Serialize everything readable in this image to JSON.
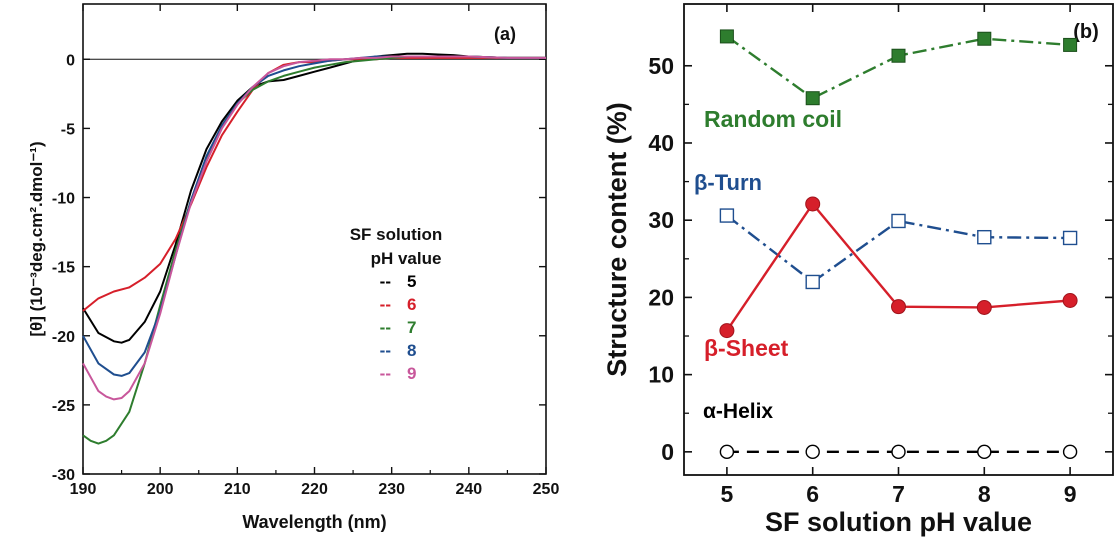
{
  "chart_data": [
    {
      "type": "line",
      "panel_label": "(a)",
      "xlabel": "Wavelength (nm)",
      "ylabel": "[θ] (10⁻³deg.cm².dmol⁻¹)",
      "xlim": [
        190,
        250
      ],
      "ylim": [
        -30,
        4
      ],
      "x_ticks": [
        190,
        200,
        210,
        220,
        230,
        240,
        250
      ],
      "y_ticks": [
        0,
        -5,
        -10,
        -15,
        -20,
        -25,
        -30
      ],
      "grid": false,
      "reference_line_y": 0,
      "legend": {
        "title_line1": "SF solution",
        "title_line2": "pH value",
        "placement": "center-right",
        "entries": [
          {
            "dash": "--",
            "label": "5",
            "color": "#000000"
          },
          {
            "dash": "--",
            "label": "6",
            "color": "#d61f2a"
          },
          {
            "dash": "--",
            "label": "7",
            "color": "#2e7d2e"
          },
          {
            "dash": "--",
            "label": "8",
            "color": "#1f4e8f"
          },
          {
            "dash": "--",
            "label": "9",
            "color": "#c8579b"
          }
        ]
      },
      "series": [
        {
          "name": "5",
          "color": "#000000",
          "x": [
            190,
            192,
            194,
            195,
            196,
            198,
            200,
            202,
            204,
            206,
            208,
            210,
            212,
            214,
            216,
            218,
            220,
            222,
            224,
            226,
            228,
            230,
            232,
            234,
            236,
            238,
            240,
            245,
            250
          ],
          "y": [
            -18.0,
            -19.8,
            -20.4,
            -20.5,
            -20.3,
            -19.0,
            -16.8,
            -13.4,
            -9.5,
            -6.5,
            -4.5,
            -3.0,
            -2.0,
            -1.6,
            -1.5,
            -1.2,
            -0.9,
            -0.6,
            -0.3,
            0.0,
            0.2,
            0.3,
            0.4,
            0.4,
            0.35,
            0.3,
            0.2,
            0.1,
            0.1
          ]
        },
        {
          "name": "6",
          "color": "#d61f2a",
          "x": [
            190,
            192,
            194,
            196,
            198,
            200,
            202,
            204,
            206,
            208,
            210,
            212,
            214,
            216,
            218,
            220,
            222,
            224,
            226,
            228,
            230,
            232,
            234,
            236,
            238,
            240,
            245,
            250
          ],
          "y": [
            -18.2,
            -17.3,
            -16.8,
            -16.5,
            -15.8,
            -14.8,
            -13.0,
            -10.5,
            -7.8,
            -5.5,
            -3.8,
            -2.2,
            -1.0,
            -0.4,
            -0.2,
            -0.2,
            -0.1,
            0.0,
            0.0,
            0.0,
            0.1,
            0.1,
            0.1,
            0.1,
            0.1,
            0.1,
            0.1,
            0.1
          ]
        },
        {
          "name": "7",
          "color": "#2e7d2e",
          "x": [
            190,
            191,
            192,
            193,
            194,
            196,
            198,
            200,
            202,
            204,
            206,
            208,
            210,
            212,
            214,
            216,
            218,
            220,
            222,
            224,
            226,
            228,
            230,
            232,
            234,
            236,
            238,
            240,
            245,
            250
          ],
          "y": [
            -27.2,
            -27.6,
            -27.8,
            -27.6,
            -27.2,
            -25.5,
            -22.0,
            -17.8,
            -13.8,
            -10.2,
            -7.2,
            -4.8,
            -3.2,
            -2.2,
            -1.6,
            -1.2,
            -0.9,
            -0.6,
            -0.4,
            -0.2,
            -0.1,
            0.0,
            0.1,
            0.2,
            0.2,
            0.2,
            0.2,
            0.2,
            0.1,
            0.1
          ]
        },
        {
          "name": "8",
          "color": "#1f4e8f",
          "x": [
            190,
            192,
            194,
            195,
            196,
            198,
            200,
            202,
            204,
            206,
            208,
            210,
            212,
            214,
            216,
            218,
            220,
            222,
            224,
            226,
            228,
            230,
            232,
            234,
            236,
            238,
            240,
            245,
            250
          ],
          "y": [
            -20.0,
            -22.0,
            -22.8,
            -22.9,
            -22.7,
            -21.2,
            -18.2,
            -14.2,
            -10.2,
            -7.0,
            -4.8,
            -3.2,
            -2.0,
            -1.2,
            -0.8,
            -0.5,
            -0.3,
            -0.1,
            0.0,
            0.1,
            0.2,
            0.2,
            0.2,
            0.2,
            0.2,
            0.2,
            0.2,
            0.1,
            0.1
          ]
        },
        {
          "name": "9",
          "color": "#c8579b",
          "x": [
            190,
            192,
            193,
            194,
            195,
            196,
            198,
            200,
            202,
            204,
            206,
            208,
            210,
            212,
            214,
            216,
            218,
            220,
            222,
            224,
            226,
            228,
            230,
            232,
            234,
            236,
            238,
            240,
            245,
            250
          ],
          "y": [
            -22.0,
            -24.0,
            -24.4,
            -24.6,
            -24.5,
            -24.0,
            -22.0,
            -18.4,
            -14.2,
            -10.4,
            -7.4,
            -5.0,
            -3.3,
            -2.0,
            -1.0,
            -0.5,
            -0.2,
            -0.1,
            0.0,
            0.0,
            0.1,
            0.1,
            0.2,
            0.2,
            0.2,
            0.2,
            0.2,
            0.2,
            0.1,
            0.1
          ]
        }
      ]
    },
    {
      "type": "line",
      "panel_label": "(b)",
      "xlabel": "SF solution pH value",
      "ylabel": "Structure content (%)",
      "xlim": [
        4.5,
        9.5
      ],
      "ylim": [
        -3,
        58
      ],
      "x_ticks": [
        5,
        6,
        7,
        8,
        9
      ],
      "y_ticks": [
        0,
        10,
        20,
        30,
        40,
        50
      ],
      "grid": false,
      "categories": [
        5,
        6,
        7,
        8,
        9
      ],
      "series": [
        {
          "name": "Random coil",
          "color": "#2e7d2e",
          "marker": "square-filled",
          "line": "dash-dot",
          "values": [
            53.8,
            45.8,
            51.3,
            53.5,
            52.7
          ]
        },
        {
          "name": "β-Turn",
          "color": "#1f4e8f",
          "marker": "square-open",
          "line": "dash-dot",
          "values": [
            30.6,
            22.0,
            29.9,
            27.8,
            27.7
          ]
        },
        {
          "name": "β-Sheet",
          "color": "#d61f2a",
          "marker": "circle-filled",
          "line": "solid",
          "values": [
            15.7,
            32.1,
            18.8,
            18.7,
            19.6
          ]
        },
        {
          "name": "α-Helix",
          "color": "#000000",
          "marker": "circle-open",
          "line": "dashed",
          "values": [
            0,
            0,
            0,
            0,
            0
          ]
        }
      ]
    }
  ]
}
